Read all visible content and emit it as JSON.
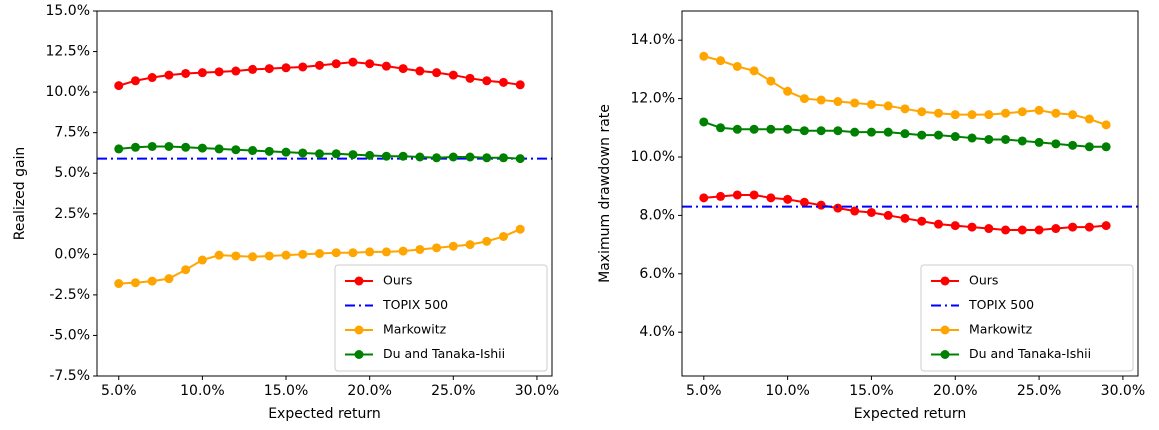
{
  "chart_data": [
    {
      "type": "line",
      "xlabel": "Expected return",
      "ylabel": "Realized gain",
      "x": [
        5,
        6,
        7,
        8,
        9,
        10,
        11,
        12,
        13,
        14,
        15,
        16,
        17,
        18,
        19,
        20,
        21,
        22,
        23,
        24,
        25,
        26,
        27,
        28,
        29
      ],
      "xlim": [
        3.7,
        30.9
      ],
      "xticks": [
        {
          "value": 5,
          "label": "5.0%"
        },
        {
          "value": 10,
          "label": "10.0%"
        },
        {
          "value": 15,
          "label": "15.0%"
        },
        {
          "value": 20,
          "label": "20.0%"
        },
        {
          "value": 25,
          "label": "25.0%"
        },
        {
          "value": 30,
          "label": "30.0%"
        }
      ],
      "ylim": [
        -7.5,
        15
      ],
      "yticks": [
        {
          "value": -7.5,
          "label": "-7.5%"
        },
        {
          "value": -5,
          "label": "-5.0%"
        },
        {
          "value": -2.5,
          "label": "-2.5%"
        },
        {
          "value": 0,
          "label": "0.0%"
        },
        {
          "value": 2.5,
          "label": "2.5%"
        },
        {
          "value": 5,
          "label": "5.0%"
        },
        {
          "value": 7.5,
          "label": "7.5%"
        },
        {
          "value": 10,
          "label": "10.0%"
        },
        {
          "value": 12.5,
          "label": "12.5%"
        },
        {
          "value": 15,
          "label": "15.0%"
        }
      ],
      "legend": "lower right",
      "series": [
        {
          "name": "Ours",
          "color": "#ff0000",
          "values": [
            10.4,
            10.7,
            10.9,
            11.05,
            11.15,
            11.2,
            11.25,
            11.3,
            11.4,
            11.45,
            11.5,
            11.55,
            11.65,
            11.75,
            11.85,
            11.75,
            11.6,
            11.45,
            11.3,
            11.2,
            11.05,
            10.85,
            10.7,
            10.6,
            10.45
          ]
        },
        {
          "name": "TOPIX 500",
          "color": "#0000ff",
          "linestyle": "dashdot",
          "y": 5.9
        },
        {
          "name": "Markowitz",
          "color": "#ffa500",
          "values": [
            -1.8,
            -1.75,
            -1.65,
            -1.5,
            -0.95,
            -0.35,
            -0.05,
            -0.1,
            -0.15,
            -0.1,
            -0.05,
            0.0,
            0.05,
            0.1,
            0.1,
            0.15,
            0.15,
            0.2,
            0.3,
            0.4,
            0.5,
            0.6,
            0.8,
            1.1,
            1.55
          ]
        },
        {
          "name": "Du and Tanaka-Ishii",
          "color": "#008000",
          "values": [
            6.5,
            6.6,
            6.65,
            6.65,
            6.6,
            6.55,
            6.5,
            6.45,
            6.4,
            6.35,
            6.3,
            6.25,
            6.2,
            6.2,
            6.15,
            6.1,
            6.05,
            6.05,
            6.0,
            5.95,
            6.0,
            6.0,
            5.95,
            5.95,
            5.9
          ]
        }
      ]
    },
    {
      "type": "line",
      "xlabel": "Expected return",
      "ylabel": "Maximum drawdown rate",
      "x": [
        5,
        6,
        7,
        8,
        9,
        10,
        11,
        12,
        13,
        14,
        15,
        16,
        17,
        18,
        19,
        20,
        21,
        22,
        23,
        24,
        25,
        26,
        27,
        28,
        29
      ],
      "xlim": [
        3.7,
        30.9
      ],
      "xticks": [
        {
          "value": 5,
          "label": "5.0%"
        },
        {
          "value": 10,
          "label": "10.0%"
        },
        {
          "value": 15,
          "label": "15.0%"
        },
        {
          "value": 20,
          "label": "20.0%"
        },
        {
          "value": 25,
          "label": "25.0%"
        },
        {
          "value": 30,
          "label": "30.0%"
        }
      ],
      "ylim": [
        2.5,
        15
      ],
      "yticks": [
        {
          "value": 4,
          "label": "4.0%"
        },
        {
          "value": 6,
          "label": "6.0%"
        },
        {
          "value": 8,
          "label": "8.0%"
        },
        {
          "value": 10,
          "label": "10.0%"
        },
        {
          "value": 12,
          "label": "12.0%"
        },
        {
          "value": 14,
          "label": "14.0%"
        }
      ],
      "legend": "lower right",
      "series": [
        {
          "name": "Ours",
          "color": "#ff0000",
          "values": [
            8.6,
            8.65,
            8.7,
            8.7,
            8.6,
            8.55,
            8.45,
            8.35,
            8.25,
            8.15,
            8.1,
            8.0,
            7.9,
            7.8,
            7.7,
            7.65,
            7.6,
            7.55,
            7.5,
            7.5,
            7.5,
            7.55,
            7.6,
            7.6,
            7.65
          ]
        },
        {
          "name": "TOPIX 500",
          "color": "#0000ff",
          "linestyle": "dashdot",
          "y": 8.3
        },
        {
          "name": "Markowitz",
          "color": "#ffa500",
          "values": [
            13.45,
            13.3,
            13.1,
            12.95,
            12.6,
            12.25,
            12.0,
            11.95,
            11.9,
            11.85,
            11.8,
            11.75,
            11.65,
            11.55,
            11.5,
            11.45,
            11.45,
            11.45,
            11.5,
            11.55,
            11.6,
            11.5,
            11.45,
            11.3,
            11.1
          ]
        },
        {
          "name": "Du and Tanaka-Ishii",
          "color": "#008000",
          "values": [
            11.2,
            11.0,
            10.95,
            10.95,
            10.95,
            10.95,
            10.9,
            10.9,
            10.9,
            10.85,
            10.85,
            10.85,
            10.8,
            10.75,
            10.75,
            10.7,
            10.65,
            10.6,
            10.6,
            10.55,
            10.5,
            10.45,
            10.4,
            10.35,
            10.35
          ]
        }
      ]
    }
  ]
}
